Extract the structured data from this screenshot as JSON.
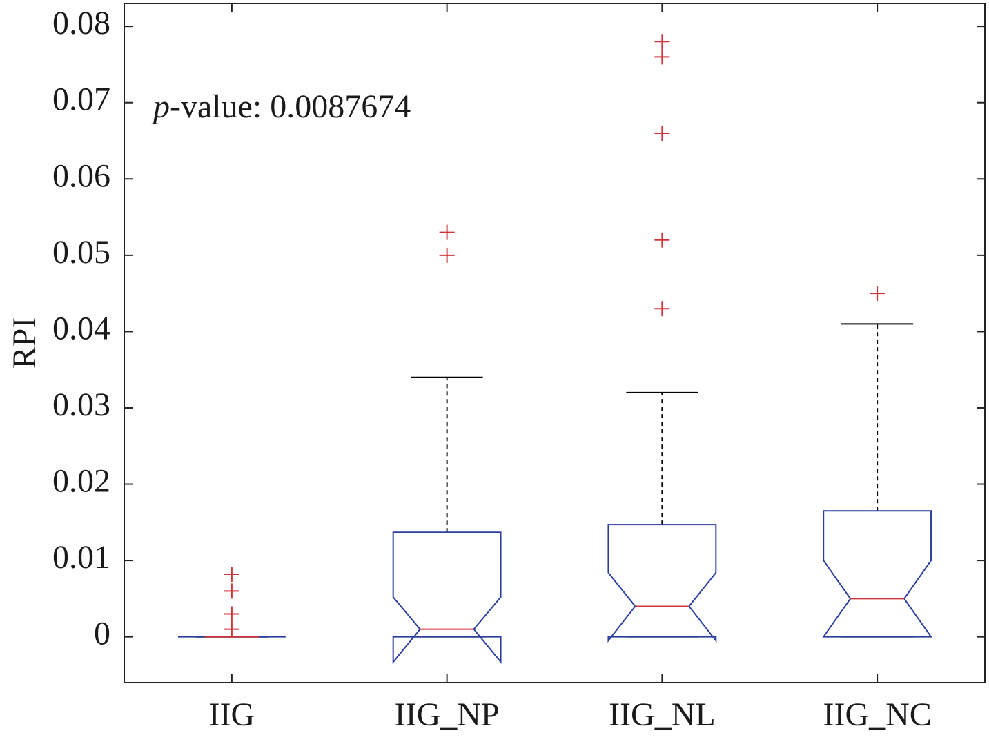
{
  "chart_data": {
    "type": "box",
    "y_label": "RPI",
    "annotation": {
      "italic": "p",
      "text": "-value: 0.0087674"
    },
    "categories": [
      "IIG",
      "IIG_NP",
      "IIG_NL",
      "IIG_NC"
    ],
    "boxes": [
      {
        "q1": 0,
        "median": 0,
        "q3": 0,
        "notch": [
          0,
          0
        ],
        "whiskers": [
          0,
          0
        ],
        "outliers": [
          0.0082,
          0.006,
          0.003,
          0.001
        ]
      },
      {
        "q1": 0,
        "median": 0.001,
        "q3": 0.0137,
        "notch": [
          -0.0033,
          0.0052
        ],
        "whiskers": [
          0,
          0.034
        ],
        "outliers": [
          0.053,
          0.05
        ]
      },
      {
        "q1": 0,
        "median": 0.004,
        "q3": 0.0147,
        "notch": [
          -0.0005,
          0.0084
        ],
        "whiskers": [
          0,
          0.032
        ],
        "outliers": [
          0.078,
          0.076,
          0.066,
          0.052,
          0.043
        ]
      },
      {
        "q1": 0,
        "median": 0.005,
        "q3": 0.0165,
        "notch": [
          0,
          0.01
        ],
        "whiskers": [
          0,
          0.041
        ],
        "outliers": [
          0.045
        ]
      }
    ],
    "box_color": "#2b3f9e",
    "median_color": "#d0333a",
    "outlier_color": "#d0333a",
    "whisker_color": "#000000",
    "ylim": [
      -0.006,
      0.083
    ],
    "yticks": [
      0,
      0.01,
      0.02,
      0.03,
      0.04,
      0.05,
      0.06,
      0.07,
      0.08
    ],
    "xlim": [
      0.5,
      4.5
    ]
  }
}
